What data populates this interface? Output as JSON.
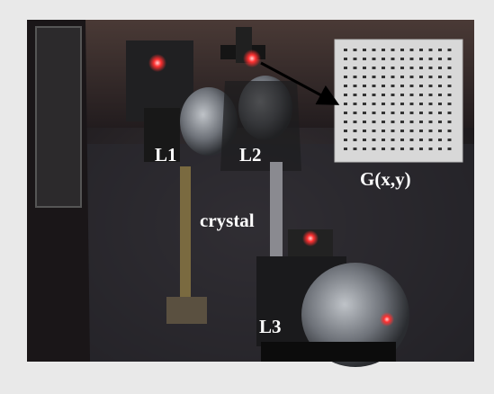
{
  "labels": {
    "lens1": "L1",
    "lens2": "L2",
    "crystal": "crystal",
    "lens3": "L3",
    "grid": "G(x,y)"
  }
}
